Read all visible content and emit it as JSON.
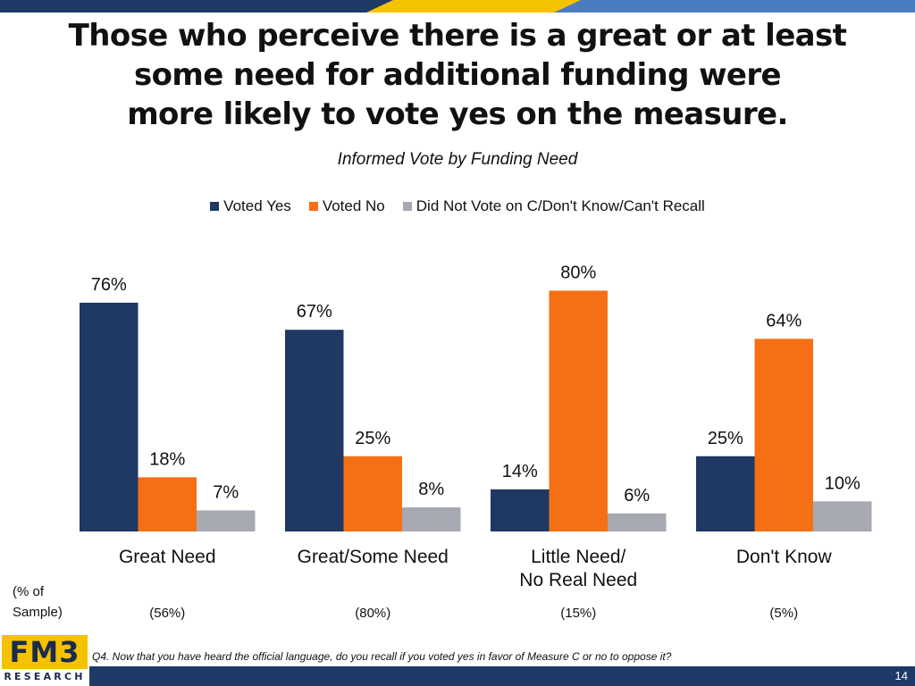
{
  "colors": {
    "navy": "#1f3864",
    "orange": "#f57014",
    "gray": "#a6a8b2",
    "gold": "#f5c200",
    "blue": "#4a7cc0",
    "footer": "#1e3a66"
  },
  "title_lines": [
    "Those who perceive there is a great or at least",
    "some need for additional funding were",
    "more likely to vote yes on the measure."
  ],
  "subtitle": "Informed Vote by Funding Need",
  "sample_label_line1": "(% of",
  "sample_label_line2": "Sample)",
  "logo": {
    "top": "FM3",
    "bottom": "RESEARCH"
  },
  "footnote": "Q4. Now that you have heard the official language, do you recall if you voted yes in favor of Measure C or no to oppose it?",
  "page_number": "14",
  "chart_data": {
    "type": "bar",
    "title": "Informed Vote by Funding Need",
    "categories": [
      {
        "label_lines": [
          "Great Need"
        ],
        "sample": "(56%)"
      },
      {
        "label_lines": [
          "Great/Some Need"
        ],
        "sample": "(80%)"
      },
      {
        "label_lines": [
          "Little Need/",
          "No Real Need"
        ],
        "sample": "(15%)"
      },
      {
        "label_lines": [
          "Don't Know"
        ],
        "sample": "(5%)"
      }
    ],
    "series": [
      {
        "name": "Voted Yes",
        "color": "#1f3864",
        "values": [
          76,
          67,
          14,
          25
        ]
      },
      {
        "name": "Voted No",
        "color": "#f57014",
        "values": [
          18,
          25,
          80,
          64
        ]
      },
      {
        "name": "Did Not Vote on C/Don't Know/Can't Recall",
        "color": "#a6a8b2",
        "values": [
          7,
          8,
          6,
          10
        ]
      }
    ],
    "value_suffix": "%",
    "ylim": [
      0,
      100
    ],
    "grid": false,
    "legend": "top-center"
  }
}
